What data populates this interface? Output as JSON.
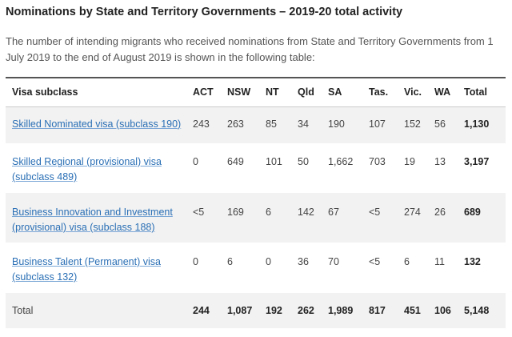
{
  "title": "Nominations by State and Territory Governments – 2019-20 total activity",
  "intro": "The number of intending migrants who received nominations from State and Territory Governments from 1 July 2019 to the end of August 2019 is shown in the following table:",
  "table": {
    "headers": [
      "Visa subclass",
      "ACT",
      "NSW",
      "NT",
      "Qld",
      "SA",
      "Tas.",
      "Vic.",
      "WA",
      "Total"
    ],
    "rows": [
      {
        "visa": "Skilled Nominated visa (subclass 190)",
        "values": [
          "243",
          "263",
          "85",
          "34",
          "190",
          "107",
          "152",
          "56"
        ],
        "total": "1,130"
      },
      {
        "visa": "Skilled Regional (provisional) visa (subclass 489)",
        "values": [
          "0",
          "649",
          "101",
          "50",
          "1,662",
          "703",
          "19",
          "13"
        ],
        "total": "3,197"
      },
      {
        "visa": "Business Innovation and Investment (provisional) visa (subclass 188)",
        "values": [
          "<5",
          "169",
          "6",
          "142",
          "67",
          "<5",
          "274",
          "26"
        ],
        "total": "689"
      },
      {
        "visa": "Business Talent (Permanent) visa (subclass 132)",
        "values": [
          "0",
          "6",
          "0",
          "36",
          "70",
          "<5",
          "6",
          "11"
        ],
        "total": "132"
      }
    ],
    "total_row": {
      "label": "Total",
      "values": [
        "244",
        "1,087",
        "192",
        "262",
        "1,989",
        "817",
        "451",
        "106"
      ],
      "total": "5,148"
    }
  },
  "colors": {
    "link": "#2a6fb5",
    "shade": "#f2f2f2",
    "header_rule": "#555555"
  }
}
